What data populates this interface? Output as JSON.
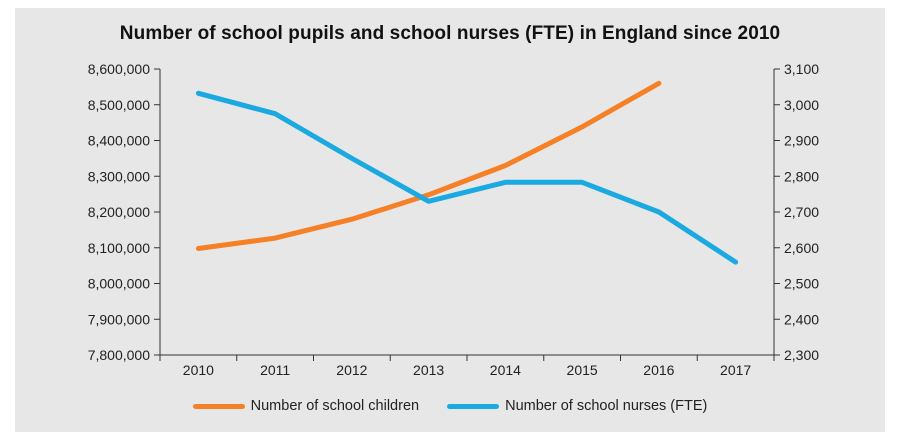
{
  "chart_data": {
    "type": "line",
    "title": "Number of school pupils and school nurses (FTE) in England since 2010",
    "x": [
      "2010",
      "2011",
      "2012",
      "2013",
      "2014",
      "2015",
      "2016",
      "2017"
    ],
    "y_left": {
      "min": 7800000,
      "max": 8600000,
      "step": 100000,
      "ticks": [
        "8,600,000",
        "8,500,000",
        "8,400,000",
        "8,300,000",
        "8,200,000",
        "8,100,000",
        "8,000,000",
        "7,900,000",
        "7,800,000"
      ]
    },
    "y_right": {
      "min": 2300,
      "max": 3100,
      "step": 100,
      "ticks": [
        "3,100",
        "3,000",
        "2,900",
        "2,800",
        "2,700",
        "2,600",
        "2,500",
        "2,400",
        "2,300"
      ]
    },
    "series": [
      {
        "name": "Number of school children",
        "axis": "left",
        "color": "#f58025",
        "values": [
          8098000,
          8127000,
          8180000,
          8248000,
          8330000,
          8438000,
          8560000,
          null
        ]
      },
      {
        "name": "Number of school nurses (FTE)",
        "axis": "right",
        "color": "#1aa9e0",
        "values": [
          3032,
          2975,
          2850,
          2730,
          2783,
          2783,
          2700,
          2560
        ]
      }
    ],
    "grid": false,
    "legend": "bottom"
  }
}
